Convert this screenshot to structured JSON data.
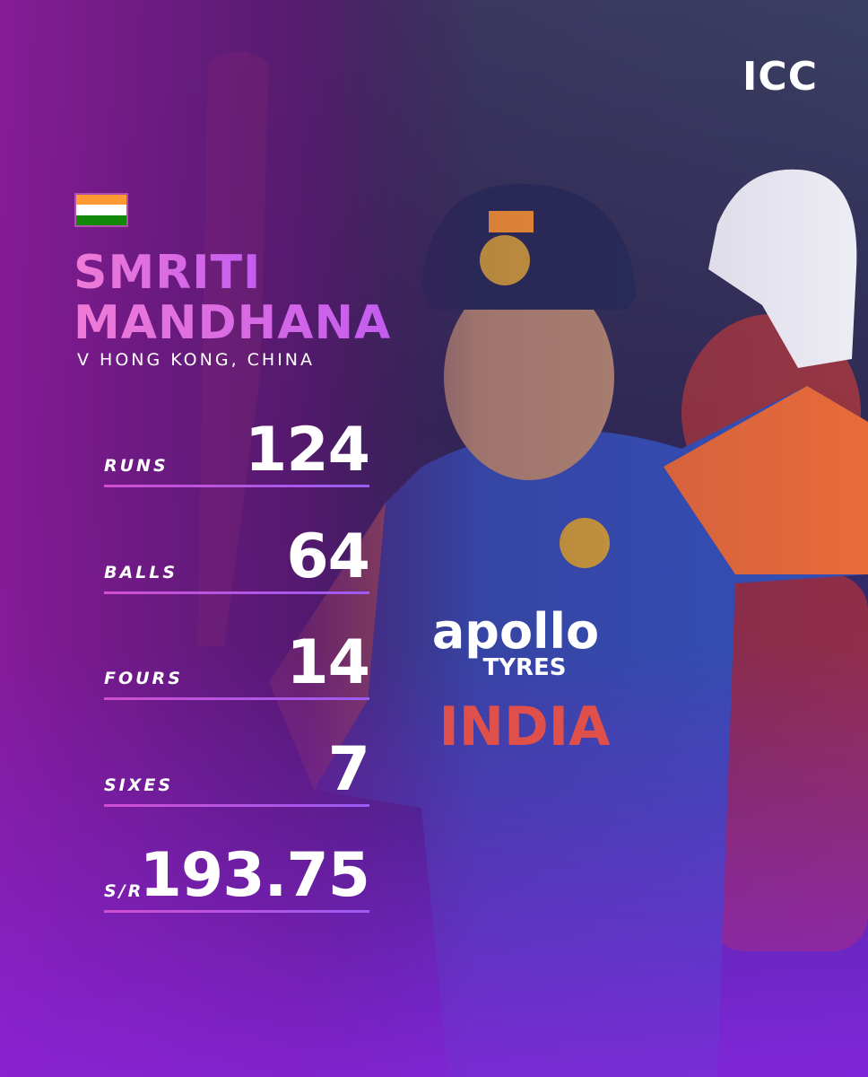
{
  "header": {
    "logo": "ICC"
  },
  "player": {
    "first_name": "SMRITI",
    "last_name": "MANDHANA",
    "opponent": "V HONG KONG, CHINA"
  },
  "stats": [
    {
      "label": "RUNS",
      "value": 124
    },
    {
      "label": "BALLS",
      "value": 64
    },
    {
      "label": "FOURS",
      "value": 14
    },
    {
      "label": "SIXES",
      "value": 7
    },
    {
      "label": "S/R",
      "value": 193.75
    }
  ],
  "jersey": {
    "sponsor": "apollo",
    "sponsor_line2": "TYRES",
    "team": "INDIA"
  }
}
